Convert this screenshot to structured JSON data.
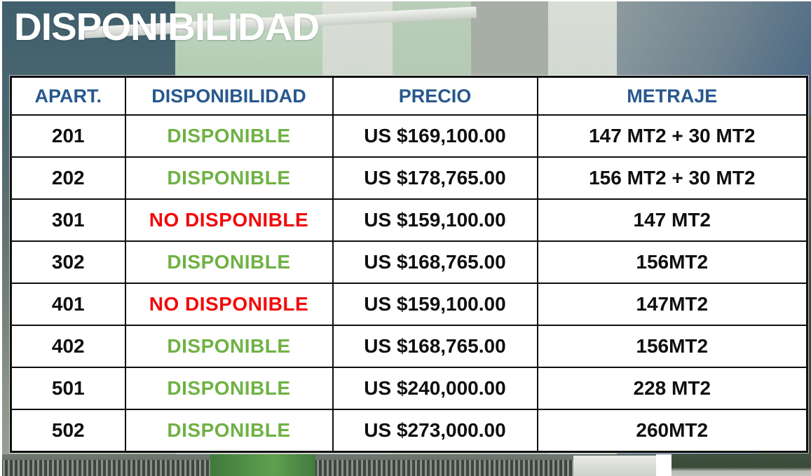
{
  "title": "DISPONIBILIDAD",
  "table": {
    "columns": [
      "APART.",
      "DISPONIBILIDAD",
      "PRECIO",
      "METRAJE"
    ],
    "rows": [
      {
        "apart": "201",
        "status": "DISPONIBLE",
        "available": true,
        "price": "US $169,100.00",
        "size": "147 MT2 + 30 MT2"
      },
      {
        "apart": "202",
        "status": "DISPONIBLE",
        "available": true,
        "price": "US $178,765.00",
        "size": "156 MT2 + 30 MT2"
      },
      {
        "apart": "301",
        "status": "NO DISPONIBLE",
        "available": false,
        "price": "US $159,100.00",
        "size": "147 MT2"
      },
      {
        "apart": "302",
        "status": "DISPONIBLE",
        "available": true,
        "price": "US $168,765.00",
        "size": "156MT2"
      },
      {
        "apart": "401",
        "status": "NO DISPONIBLE",
        "available": false,
        "price": "US $159,100.00",
        "size": "147MT2"
      },
      {
        "apart": "402",
        "status": "DISPONIBLE",
        "available": true,
        "price": "US $168,765.00",
        "size": "156MT2"
      },
      {
        "apart": "501",
        "status": "DISPONIBLE",
        "available": true,
        "price": "US $240,000.00",
        "size": "228 MT2"
      },
      {
        "apart": "502",
        "status": "DISPONIBLE",
        "available": true,
        "price": "US $273,000.00",
        "size": "260MT2"
      }
    ]
  },
  "colors": {
    "header_text": "#27588e",
    "available": "#6fb244",
    "not_available": "#f20a0a",
    "body_text": "#0f0f0f",
    "title_text": "#ffffff"
  }
}
